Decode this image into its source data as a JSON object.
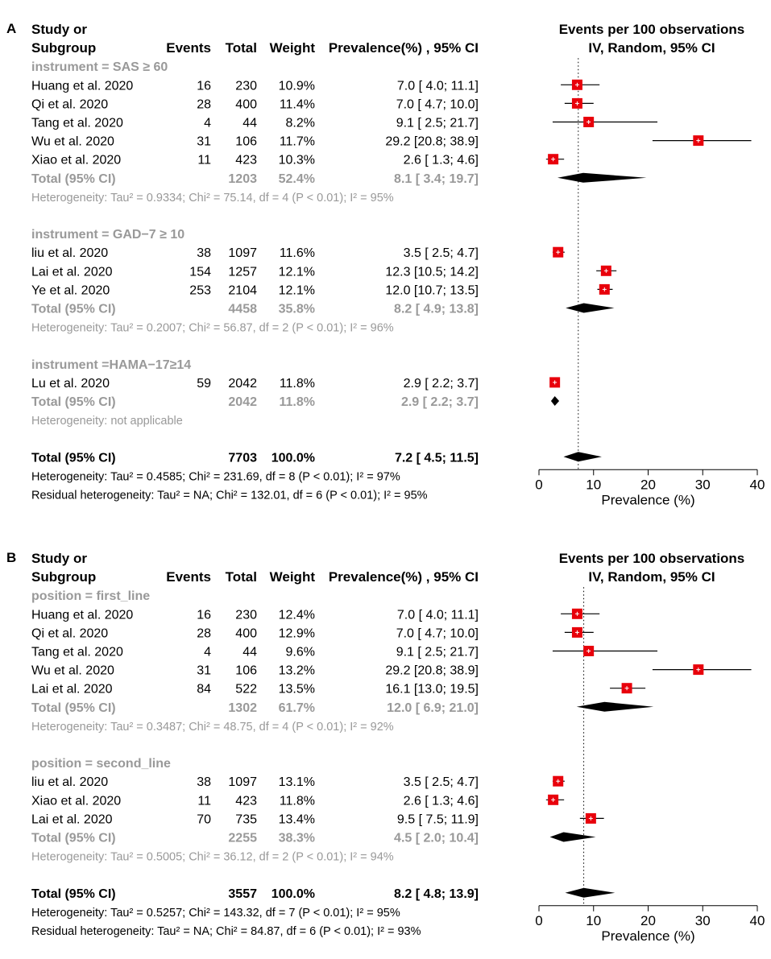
{
  "colors": {
    "gray": "#999999",
    "box": "#e8000b",
    "diamond": "#000000"
  },
  "chart_data": [
    {
      "type": "forest",
      "panel_label": "A",
      "header": {
        "study_line1": "Study or",
        "study_line2": "Subgroup",
        "events": "Events",
        "total": "Total",
        "weight": "Weight",
        "prev": "Prevalence(%) , 95% CI",
        "right_line1": "Events per 100 observations",
        "right_line2": "IV, Random, 95% CI"
      },
      "x_axis": {
        "label": "Prevalence (%)",
        "range": [
          0,
          40
        ],
        "ticks": [
          "0",
          "10",
          "20",
          "30",
          "40"
        ],
        "ref_line": 7.2
      },
      "groups": [
        {
          "label": "instrument = SAS ≥ 60",
          "studies": [
            {
              "name": "Huang et al. 2020",
              "events": "16",
              "total": "230",
              "weight": "10.9%",
              "ci_text": "7.0 [ 4.0; 11.1]",
              "est": 7.0,
              "lo": 4.0,
              "hi": 11.1
            },
            {
              "name": "Qi et al. 2020",
              "events": "28",
              "total": "400",
              "weight": "11.4%",
              "ci_text": "7.0 [ 4.7; 10.0]",
              "est": 7.0,
              "lo": 4.7,
              "hi": 10.0
            },
            {
              "name": "Tang et al. 2020",
              "events": "4",
              "total": "44",
              "weight": "8.2%",
              "ci_text": "9.1 [ 2.5; 21.7]",
              "est": 9.1,
              "lo": 2.5,
              "hi": 21.7
            },
            {
              "name": "Wu et al. 2020",
              "events": "31",
              "total": "106",
              "weight": "11.7%",
              "ci_text": "29.2 [20.8; 38.9]",
              "est": 29.2,
              "lo": 20.8,
              "hi": 38.9
            },
            {
              "name": "Xiao et al. 2020",
              "events": "11",
              "total": "423",
              "weight": "10.3%",
              "ci_text": "2.6 [ 1.3; 4.6]",
              "est": 2.6,
              "lo": 1.3,
              "hi": 4.6
            }
          ],
          "total": {
            "label": "Total (95% CI)",
            "n": "1203",
            "weight": "52.4%",
            "ci_text": "8.1 [ 3.4; 19.7]",
            "est": 8.1,
            "lo": 3.4,
            "hi": 19.7
          },
          "heterogeneity": "Heterogeneity: Tau² = 0.9334; Chi² = 75.14, df = 4 (P < 0.01); I² = 95%"
        },
        {
          "label": "instrument = GAD−7 ≥ 10",
          "studies": [
            {
              "name": "liu et al. 2020",
              "events": "38",
              "total": "1097",
              "weight": "11.6%",
              "ci_text": "3.5 [ 2.5; 4.7]",
              "est": 3.5,
              "lo": 2.5,
              "hi": 4.7
            },
            {
              "name": "Lai et al. 2020",
              "events": "154",
              "total": "1257",
              "weight": "12.1%",
              "ci_text": "12.3 [10.5; 14.2]",
              "est": 12.3,
              "lo": 10.5,
              "hi": 14.2
            },
            {
              "name": "Ye et al. 2020",
              "events": "253",
              "total": "2104",
              "weight": "12.1%",
              "ci_text": "12.0 [10.7; 13.5]",
              "est": 12.0,
              "lo": 10.7,
              "hi": 13.5
            }
          ],
          "total": {
            "label": "Total (95% CI)",
            "n": "4458",
            "weight": "35.8%",
            "ci_text": "8.2 [ 4.9; 13.8]",
            "est": 8.2,
            "lo": 4.9,
            "hi": 13.8
          },
          "heterogeneity": "Heterogeneity: Tau² = 0.2007; Chi² = 56.87, df = 2 (P < 0.01); I² = 96%"
        },
        {
          "label": "instrument =HAMA−17≥14",
          "studies": [
            {
              "name": "Lu et al. 2020",
              "events": "59",
              "total": "2042",
              "weight": "11.8%",
              "ci_text": "2.9 [ 2.2; 3.7]",
              "est": 2.9,
              "lo": 2.2,
              "hi": 3.7
            }
          ],
          "total": {
            "label": "Total (95% CI)",
            "n": "2042",
            "weight": "11.8%",
            "ci_text": "2.9 [ 2.2; 3.7]",
            "est": 2.9,
            "lo": 2.2,
            "hi": 3.7
          },
          "heterogeneity": "Heterogeneity: not applicable"
        }
      ],
      "overall": {
        "label": "Total (95% CI)",
        "n": "7703",
        "weight": "100.0%",
        "ci_text": "7.2 [ 4.5; 11.5]",
        "est": 7.2,
        "lo": 4.5,
        "hi": 11.5
      },
      "footer": [
        "Heterogeneity: Tau² = 0.4585; Chi² = 231.69, df = 8 (P < 0.01); I² = 97%",
        "Residual heterogeneity: Tau² = NA; Chi² = 132.01, df = 6 (P < 0.01); I² = 95%"
      ]
    },
    {
      "type": "forest",
      "panel_label": "B",
      "header": {
        "study_line1": "Study or",
        "study_line2": "Subgroup",
        "events": "Events",
        "total": "Total",
        "weight": "Weight",
        "prev": "Prevalence(%) , 95% CI",
        "right_line1": "Events per 100 observations",
        "right_line2": "IV, Random, 95% CI"
      },
      "x_axis": {
        "label": "Prevalence (%)",
        "range": [
          0,
          40
        ],
        "ticks": [
          "0",
          "10",
          "20",
          "30",
          "40"
        ],
        "ref_line": 8.2
      },
      "groups": [
        {
          "label": "position = first_line",
          "studies": [
            {
              "name": "Huang et al. 2020",
              "events": "16",
              "total": "230",
              "weight": "12.4%",
              "ci_text": "7.0 [ 4.0; 11.1]",
              "est": 7.0,
              "lo": 4.0,
              "hi": 11.1
            },
            {
              "name": "Qi et al. 2020",
              "events": "28",
              "total": "400",
              "weight": "12.9%",
              "ci_text": "7.0 [ 4.7; 10.0]",
              "est": 7.0,
              "lo": 4.7,
              "hi": 10.0
            },
            {
              "name": "Tang et al. 2020",
              "events": "4",
              "total": "44",
              "weight": "9.6%",
              "ci_text": "9.1 [ 2.5; 21.7]",
              "est": 9.1,
              "lo": 2.5,
              "hi": 21.7
            },
            {
              "name": "Wu et al. 2020",
              "events": "31",
              "total": "106",
              "weight": "13.2%",
              "ci_text": "29.2 [20.8; 38.9]",
              "est": 29.2,
              "lo": 20.8,
              "hi": 38.9
            },
            {
              "name": "Lai et al. 2020",
              "events": "84",
              "total": "522",
              "weight": "13.5%",
              "ci_text": "16.1 [13.0; 19.5]",
              "est": 16.1,
              "lo": 13.0,
              "hi": 19.5
            }
          ],
          "total": {
            "label": "Total (95% CI)",
            "n": "1302",
            "weight": "61.7%",
            "ci_text": "12.0 [ 6.9; 21.0]",
            "est": 12.0,
            "lo": 6.9,
            "hi": 21.0
          },
          "heterogeneity": "Heterogeneity: Tau² = 0.3487; Chi² = 48.75, df = 4 (P < 0.01); I² = 92%"
        },
        {
          "label": "position = second_line",
          "studies": [
            {
              "name": "liu et al. 2020",
              "events": "38",
              "total": "1097",
              "weight": "13.1%",
              "ci_text": "3.5 [ 2.5; 4.7]",
              "est": 3.5,
              "lo": 2.5,
              "hi": 4.7
            },
            {
              "name": "Xiao et al. 2020",
              "events": "11",
              "total": "423",
              "weight": "11.8%",
              "ci_text": "2.6 [ 1.3; 4.6]",
              "est": 2.6,
              "lo": 1.3,
              "hi": 4.6
            },
            {
              "name": "Lai et al. 2020",
              "events": "70",
              "total": "735",
              "weight": "13.4%",
              "ci_text": "9.5 [ 7.5; 11.9]",
              "est": 9.5,
              "lo": 7.5,
              "hi": 11.9
            }
          ],
          "total": {
            "label": "Total (95% CI)",
            "n": "2255",
            "weight": "38.3%",
            "ci_text": "4.5 [ 2.0; 10.4]",
            "est": 4.5,
            "lo": 2.0,
            "hi": 10.4
          },
          "heterogeneity": "Heterogeneity: Tau² = 0.5005; Chi² = 36.12, df = 2 (P < 0.01); I² = 94%"
        }
      ],
      "overall": {
        "label": "Total (95% CI)",
        "n": "3557",
        "weight": "100.0%",
        "ci_text": "8.2 [ 4.8; 13.9]",
        "est": 8.2,
        "lo": 4.8,
        "hi": 13.9
      },
      "footer": [
        "Heterogeneity: Tau² = 0.5257; Chi² = 143.32, df = 7 (P < 0.01); I² = 95%",
        "Residual heterogeneity: Tau² = NA; Chi² = 84.87, df = 6 (P < 0.01); I² = 93%"
      ]
    }
  ]
}
